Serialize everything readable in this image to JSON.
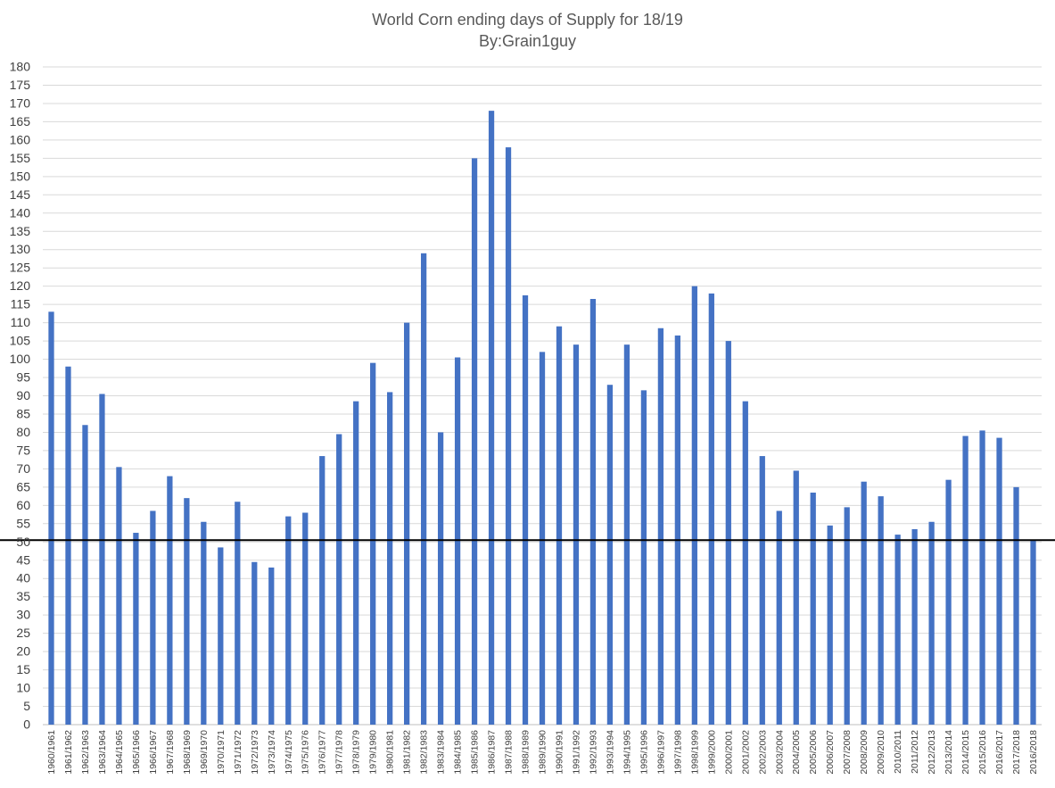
{
  "chart_data": {
    "type": "bar",
    "title": "World Corn ending days of Supply for 18/19",
    "subtitle": "By:Grain1guy",
    "xlabel": "",
    "ylabel": "",
    "ylim": [
      0,
      180
    ],
    "ytick_step": 5,
    "grid": true,
    "legend": "none",
    "bar_color": "#4472C4",
    "reference_line": {
      "y": 50.5,
      "color": "#000000"
    },
    "categories": [
      "1960/1961",
      "1961/1962",
      "1962/1963",
      "1963/1964",
      "1964/1965",
      "1965/1966",
      "1966/1967",
      "1967/1968",
      "1968/1969",
      "1969/1970",
      "1970/1971",
      "1971/1972",
      "1972/1973",
      "1973/1974",
      "1974/1975",
      "1975/1976",
      "1976/1977",
      "1977/1978",
      "1978/1979",
      "1979/1980",
      "1980/1981",
      "1981/1982",
      "1982/1983",
      "1983/1984",
      "1984/1985",
      "1985/1986",
      "1986/1987",
      "1987/1988",
      "1988/1989",
      "1989/1990",
      "1990/1991",
      "1991/1992",
      "1992/1993",
      "1993/1994",
      "1994/1995",
      "1995/1996",
      "1996/1997",
      "1997/1998",
      "1998/1999",
      "1999/2000",
      "2000/2001",
      "2001/2002",
      "2002/2003",
      "2003/2004",
      "2004/2005",
      "2005/2006",
      "2006/2007",
      "2007/2008",
      "2008/2009",
      "2009/2010",
      "2010/2011",
      "2011/2012",
      "2012/2013",
      "2013/2014",
      "2014/2015",
      "2015/2016",
      "2016/2017",
      "2017/2018",
      "2016/2018"
    ],
    "values": [
      113,
      98,
      82,
      90.5,
      70.5,
      52.5,
      58.5,
      68,
      62,
      55.5,
      48.5,
      61,
      44.5,
      43,
      57,
      58,
      73.5,
      79.5,
      88.5,
      99,
      91,
      110,
      129,
      80,
      100.5,
      155,
      168,
      158,
      117.5,
      102,
      109,
      104,
      116.5,
      93,
      104,
      91.5,
      108.5,
      106.5,
      120,
      118,
      105,
      88.5,
      73.5,
      58.5,
      69.5,
      63.5,
      54.5,
      59.5,
      66.5,
      62.5,
      52,
      53.5,
      55.5,
      67,
      79,
      80.5,
      78.5,
      65,
      50.5
    ]
  }
}
